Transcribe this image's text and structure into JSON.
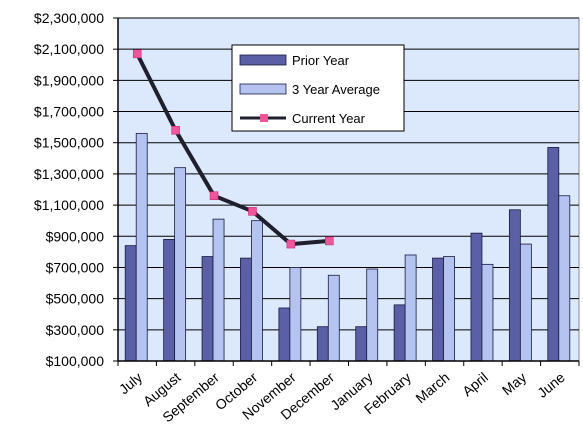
{
  "chart_data": {
    "type": "bar",
    "categories": [
      "July",
      "August",
      "September",
      "October",
      "November",
      "December",
      "January",
      "February",
      "March",
      "April",
      "May",
      "June"
    ],
    "series": [
      {
        "name": "Prior Year",
        "kind": "bar",
        "color": "#5b5fa5",
        "values": [
          840000,
          880000,
          770000,
          760000,
          440000,
          320000,
          320000,
          460000,
          760000,
          920000,
          1070000,
          1470000
        ]
      },
      {
        "name": "3 Year Average",
        "kind": "bar",
        "color": "#b4c3f0",
        "values": [
          1560000,
          1340000,
          1010000,
          1000000,
          700000,
          650000,
          690000,
          780000,
          770000,
          720000,
          850000,
          1160000
        ]
      },
      {
        "name": "Current Year",
        "kind": "line",
        "color": "#1f1f2e",
        "marker_color": "#f0559a",
        "values": [
          2070000,
          1580000,
          1160000,
          1060000,
          850000,
          870000,
          null,
          null,
          null,
          null,
          null,
          null
        ]
      }
    ],
    "ylim": [
      100000,
      2300000
    ],
    "y_ticks": [
      "$2,300,000",
      "$2,100,000",
      "$1,900,000",
      "$1,700,000",
      "$1,500,000",
      "$1,300,000",
      "$1,100,000",
      "$900,000",
      "$700,000",
      "$500,000",
      "$300,000",
      "$100,000"
    ],
    "grid": true,
    "legend": {
      "position": "top-center",
      "entries": [
        "Prior Year",
        "3 Year Average",
        "Current Year"
      ]
    },
    "plot_background": "#dce8fb"
  }
}
